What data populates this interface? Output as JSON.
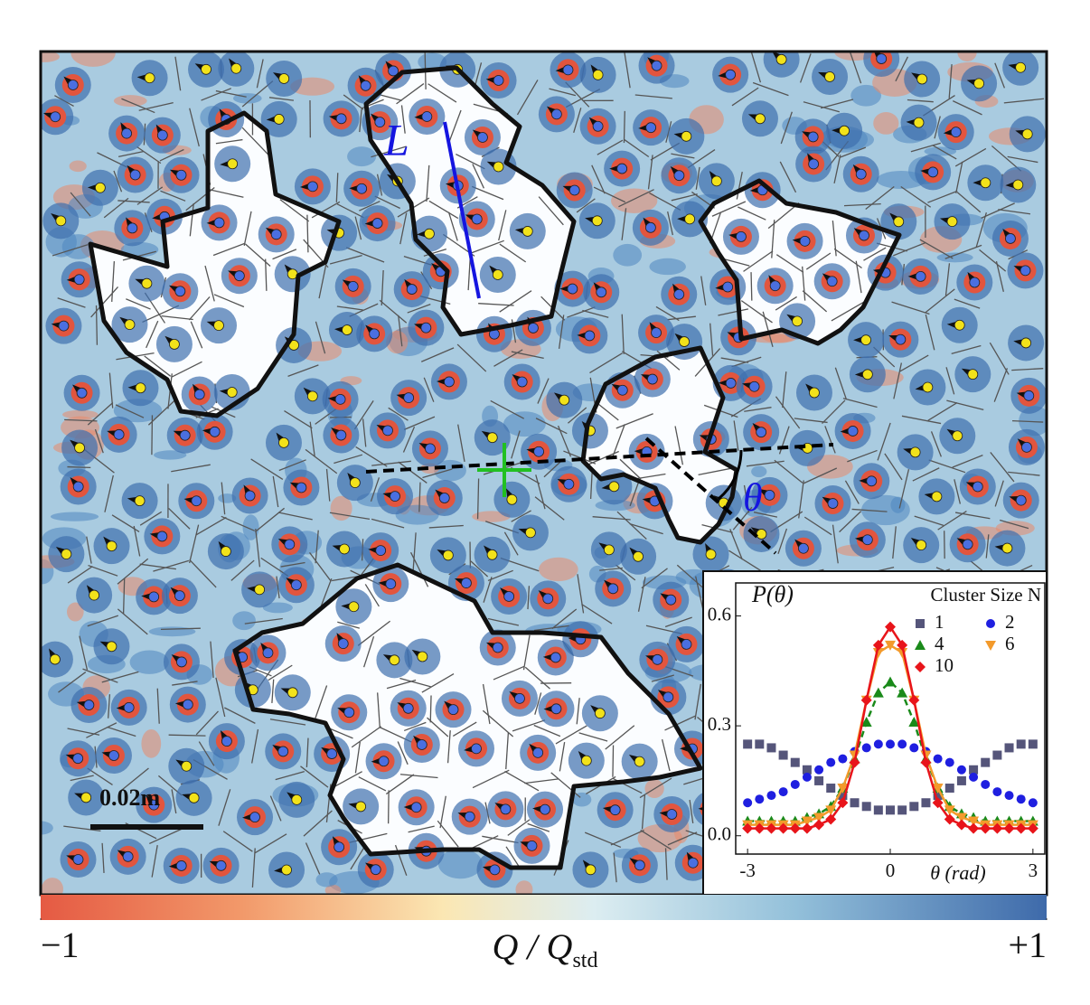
{
  "annotations": {
    "length_label": "L",
    "angle_label": "θ",
    "scale_bar": "0.02m"
  },
  "colorbar": {
    "label": "Q / Q",
    "label_subscript": "std",
    "clim": [
      -1,
      1
    ],
    "cticks": [
      {
        "value": -1,
        "label": "−1"
      },
      {
        "value": 1,
        "label": "+1"
      }
    ]
  },
  "chart_data": {
    "type": "line",
    "ylabel": "P(θ)",
    "xlabel": "θ (rad)",
    "legend_title": "Cluster Size N",
    "x": [
      -3.0,
      -2.75,
      -2.5,
      -2.25,
      -2.0,
      -1.75,
      -1.5,
      -1.25,
      -1.0,
      -0.75,
      -0.5,
      -0.25,
      0.0,
      0.25,
      0.5,
      0.75,
      1.0,
      1.25,
      1.5,
      1.75,
      2.0,
      2.25,
      2.5,
      2.75,
      3.0
    ],
    "xlim": [
      -3.25,
      3.25
    ],
    "xticks": [
      -3,
      0,
      3
    ],
    "ylim": [
      -0.05,
      0.69
    ],
    "yticks": [
      {
        "value": 0,
        "label": "0.0"
      },
      0.3,
      0.6
    ],
    "series": [
      {
        "name": "1",
        "color": "#55557a",
        "marker": "square",
        "line": "none",
        "values": [
          0.25,
          0.25,
          0.24,
          0.22,
          0.2,
          0.18,
          0.15,
          0.13,
          0.11,
          0.09,
          0.08,
          0.07,
          0.07,
          0.07,
          0.08,
          0.09,
          0.11,
          0.13,
          0.15,
          0.18,
          0.2,
          0.22,
          0.24,
          0.25,
          0.25
        ]
      },
      {
        "name": "2",
        "color": "#1f1fe0",
        "marker": "circle",
        "line": "none",
        "values": [
          0.09,
          0.1,
          0.11,
          0.12,
          0.14,
          0.16,
          0.18,
          0.2,
          0.21,
          0.23,
          0.24,
          0.25,
          0.25,
          0.25,
          0.24,
          0.23,
          0.21,
          0.2,
          0.18,
          0.16,
          0.14,
          0.12,
          0.11,
          0.1,
          0.09
        ]
      },
      {
        "name": "4",
        "color": "#1a8a1a",
        "marker": "triangle",
        "line": "dashed",
        "values": [
          0.04,
          0.04,
          0.04,
          0.04,
          0.04,
          0.05,
          0.06,
          0.08,
          0.13,
          0.21,
          0.31,
          0.39,
          0.42,
          0.39,
          0.31,
          0.21,
          0.13,
          0.08,
          0.06,
          0.05,
          0.04,
          0.04,
          0.04,
          0.04,
          0.04
        ]
      },
      {
        "name": "6",
        "color": "#f39a2b",
        "marker": "triangle-down",
        "line": "solid",
        "values": [
          0.03,
          0.03,
          0.03,
          0.03,
          0.03,
          0.04,
          0.05,
          0.07,
          0.13,
          0.22,
          0.37,
          0.5,
          0.52,
          0.5,
          0.37,
          0.22,
          0.13,
          0.07,
          0.05,
          0.04,
          0.03,
          0.03,
          0.03,
          0.03,
          0.03
        ]
      },
      {
        "name": "10",
        "color": "#e8141a",
        "marker": "diamond",
        "line": "solid",
        "values": [
          0.02,
          0.02,
          0.02,
          0.02,
          0.02,
          0.02,
          0.03,
          0.045,
          0.09,
          0.2,
          0.37,
          0.52,
          0.57,
          0.52,
          0.37,
          0.2,
          0.09,
          0.045,
          0.03,
          0.02,
          0.02,
          0.02,
          0.02,
          0.02,
          0.02
        ]
      }
    ]
  }
}
